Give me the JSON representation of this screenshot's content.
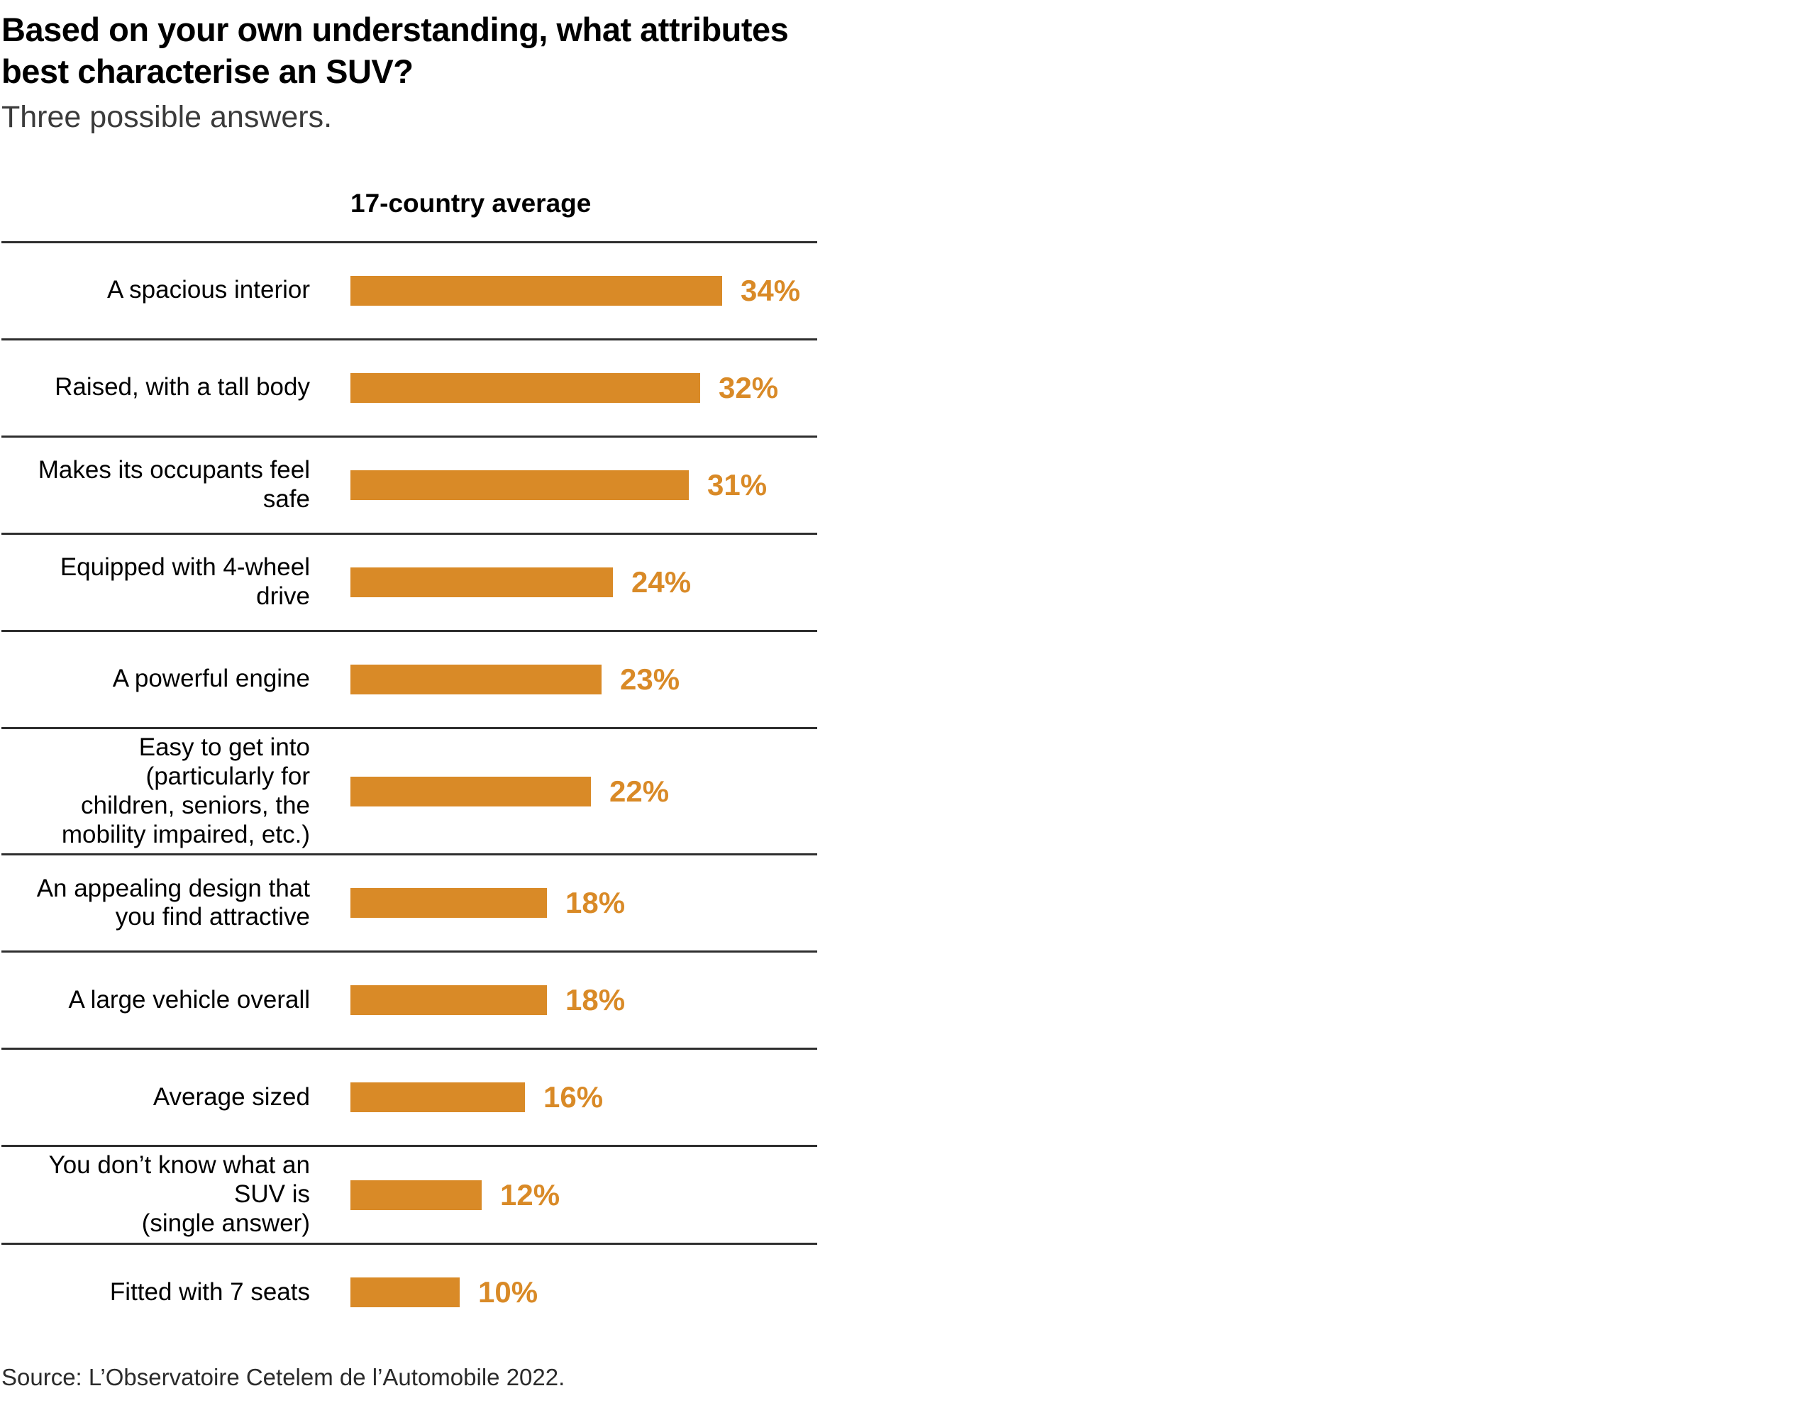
{
  "page": {
    "title": "Based on your own understanding, what attributes\nbest characterise an SUV?",
    "subtitle": "Three possible answers.",
    "source": "Source: L’Observatoire Cetelem de l’Automobile 2022."
  },
  "chart_data": {
    "type": "bar",
    "orientation": "horizontal",
    "column_header": "17-country average",
    "categories": [
      "A spacious interior",
      "Raised, with a tall body",
      "Makes its occupants feel safe",
      "Equipped with 4-wheel drive",
      "A powerful engine",
      "Easy to get into (particularly for children, seniors, the mobility impaired, etc.)",
      "An appealing design that you find attractive",
      "A large vehicle overall",
      "Average sized",
      "You don’t know what an SUV is (single answer)",
      "Fitted with 7 seats"
    ],
    "categories_wrapped": [
      "A spacious interior",
      "Raised, with a tall body",
      "Makes its occupants feel\nsafe",
      "Equipped with 4-wheel\ndrive",
      "A powerful engine",
      "Easy to get into\n(particularly for\nchildren, seniors, the\nmobility impaired, etc.)",
      "An appealing design that\nyou find attractive",
      "A large vehicle overall",
      "Average sized",
      "You don’t know what an\nSUV is\n(single answer)",
      "Fitted with 7 seats"
    ],
    "values": [
      34,
      32,
      31,
      24,
      23,
      22,
      18,
      18,
      16,
      12,
      10
    ],
    "value_suffix": "%",
    "xlim": [
      0,
      34
    ],
    "bar_color": "#D98A27",
    "divider_color": "#2e2e2e",
    "grid": false,
    "legend": false
  }
}
